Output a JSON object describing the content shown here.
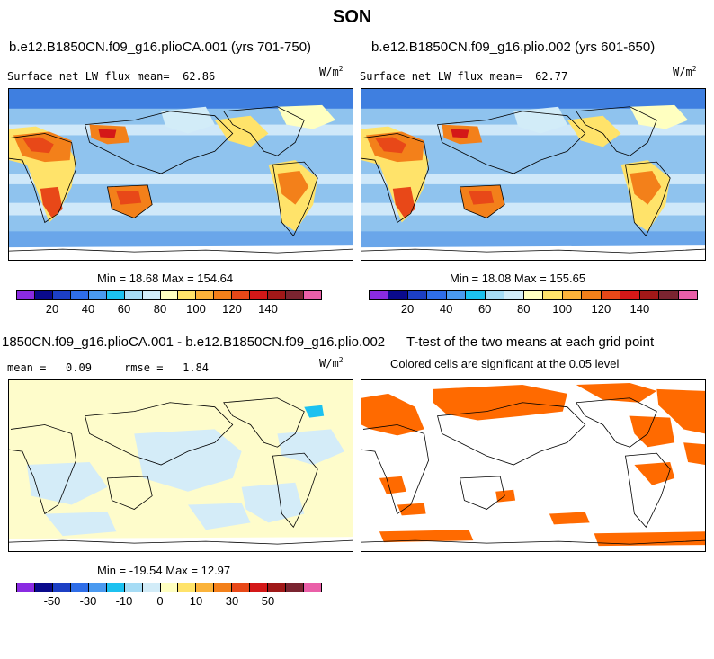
{
  "title": "SON",
  "panels": {
    "top_left": {
      "title": "b.e12.B1850CN.f09_g16.plioCA.001 (yrs 701-750)",
      "subtitle_label": "Surface net LW flux mean=",
      "subtitle_value": "62.86",
      "units": "W/m",
      "units_exp": "2",
      "minmax": "Min =  18.68 Max = 154.64"
    },
    "top_right": {
      "title": "b.e12.B1850CN.f09_g16.plio.002 (yrs 601-650)",
      "subtitle_label": "Surface net LW flux mean=",
      "subtitle_value": "62.77",
      "units": "W/m",
      "units_exp": "2",
      "minmax": "Min =  18.08 Max = 155.65"
    },
    "bottom_left": {
      "title": "1850CN.f09_g16.plioCA.001 - b.e12.B1850CN.f09_g16.plio.002",
      "mean_label": "mean =",
      "mean_value": "0.09",
      "rmse_label": "rmse =",
      "rmse_value": "1.84",
      "units": "W/m",
      "units_exp": "2",
      "minmax": "Min = -19.54 Max =  12.97"
    },
    "bottom_right": {
      "title": "T-test of the two means at each grid point",
      "subtitle": "Colored cells are significant at the 0.05 level"
    }
  },
  "colorbars": {
    "absolute": {
      "colors": [
        "#8a2be2",
        "#0a0a8c",
        "#1c3fc4",
        "#2f6ee8",
        "#4a9af0",
        "#1cc1f0",
        "#a6dcf5",
        "#d2ecf8",
        "#ffffc0",
        "#ffe36a",
        "#fbb33a",
        "#f3801a",
        "#e84818",
        "#d41818",
        "#a01818",
        "#7a2430",
        "#ea5fa8"
      ],
      "labels": [
        "20",
        "40",
        "60",
        "80",
        "100",
        "120",
        "140"
      ]
    },
    "difference": {
      "colors": [
        "#8a2be2",
        "#0a0a8c",
        "#1c3fc4",
        "#2f6ee8",
        "#4a9af0",
        "#1cc1f0",
        "#a6dcf5",
        "#d2ecf8",
        "#ffffc0",
        "#ffe36a",
        "#fbb33a",
        "#f3801a",
        "#e84818",
        "#d41818",
        "#a01818",
        "#7a2430",
        "#ea5fa8"
      ],
      "labels": [
        "-50",
        "-30",
        "-10",
        "0",
        "10",
        "30",
        "50"
      ]
    }
  },
  "map_colors": {
    "ocean_mid": "#8fc3ee",
    "ocean_light": "#cfe8f9",
    "ocean_dark": "#3f7fe0",
    "warm": "#f3801a",
    "hot": "#e84818",
    "diff_neutral": "#fefccb",
    "diff_cool": "#d4ecf8",
    "significant": "#ff6a00"
  }
}
